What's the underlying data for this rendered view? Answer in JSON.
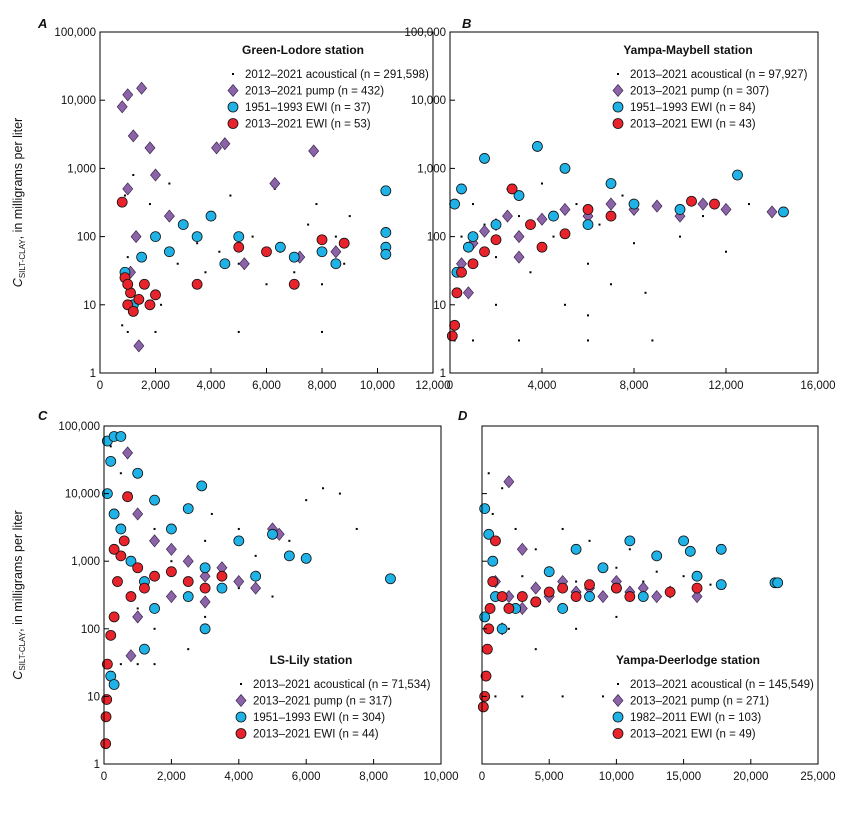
{
  "chart_data": [
    {
      "type": "scatter",
      "panel": "A",
      "title": "Green-Lodore station",
      "legend": "upper right",
      "log_y": true,
      "ylabel": {
        "symbol": "C",
        "subscript": "SILT-CLAY",
        "text": ", in milligrams per liter"
      },
      "xlim": [
        0,
        12000
      ],
      "xticks": [
        0,
        {
          "value": 2000,
          "label": "2,000"
        },
        {
          "value": 4000,
          "label": "4,000"
        },
        {
          "value": 6000,
          "label": "6,000"
        },
        {
          "value": 8000,
          "label": "8,000"
        },
        {
          "value": 10000,
          "label": "10,000"
        },
        {
          "value": 12000,
          "label": "12,000"
        }
      ],
      "ylim": [
        1,
        100000
      ],
      "yticks": [
        1,
        10,
        100,
        {
          "value": 1000,
          "label": "1,000"
        },
        {
          "value": 10000,
          "label": "10,000"
        },
        {
          "value": 100000,
          "label": "100,000"
        }
      ],
      "series": [
        {
          "name": "2012–2021 acoustical (n = 291,598)",
          "color": "#000000",
          "marker": "dot",
          "x": [
            800,
            900,
            1000,
            1200,
            1500,
            1800,
            2000,
            2200,
            2500,
            2800,
            3000,
            3500,
            3800,
            4000,
            4300,
            4700,
            5000,
            5500,
            6000,
            6300,
            6500,
            7000,
            7500,
            7800,
            8000,
            8500,
            8800,
            9000,
            2000,
            5000,
            8000,
            1000
          ],
          "values": [
            5,
            400,
            50,
            800,
            20,
            300,
            100,
            10,
            600,
            40,
            150,
            80,
            30,
            200,
            60,
            400,
            40,
            100,
            20,
            500,
            60,
            30,
            150,
            300,
            20,
            100,
            40,
            200,
            4,
            4,
            4,
            4
          ]
        },
        {
          "name": "2013–2021 pump (n = 432)",
          "color": "#8b64a8",
          "marker": "diamond",
          "x": [
            800,
            1000,
            1200,
            1500,
            1000,
            1300,
            1800,
            2000,
            1100,
            2500,
            4200,
            4500,
            6300,
            7700,
            7200,
            8500,
            5200,
            1400
          ],
          "values": [
            8000,
            12000,
            3000,
            15000,
            500,
            100,
            2000,
            800,
            30,
            200,
            2000,
            2300,
            600,
            1800,
            50,
            60,
            40,
            2.5
          ]
        },
        {
          "name": "1951–1993 EWI (n = 37)",
          "color": "#1eb2e6",
          "marker": "circle",
          "x": [
            900,
            1200,
            1500,
            2000,
            2500,
            3000,
            3500,
            4000,
            4500,
            5000,
            6500,
            7000,
            8000,
            8500,
            10300,
            10300,
            10300,
            10300
          ],
          "values": [
            30,
            10,
            50,
            100,
            60,
            150,
            100,
            200,
            40,
            100,
            70,
            50,
            60,
            40,
            470,
            115,
            70,
            55
          ]
        },
        {
          "name": "2013–2021 EWI (n = 53)",
          "color": "#e8232b",
          "marker": "circle",
          "x": [
            800,
            900,
            1000,
            1100,
            1200,
            1400,
            1600,
            1800,
            2000,
            1000,
            3500,
            5000,
            6000,
            7000,
            8000,
            8800
          ],
          "values": [
            320,
            25,
            10,
            15,
            8,
            12,
            20,
            10,
            14,
            20,
            20,
            70,
            60,
            20,
            90,
            80
          ]
        }
      ]
    },
    {
      "type": "scatter",
      "panel": "B",
      "title": "Yampa-Maybell station",
      "legend": "upper right",
      "log_y": true,
      "xlim": [
        0,
        16000
      ],
      "xticks": [
        0,
        {
          "value": 4000,
          "label": "4,000"
        },
        {
          "value": 8000,
          "label": "8,000"
        },
        {
          "value": 12000,
          "label": "12,000"
        },
        {
          "value": 16000,
          "label": "16,000"
        }
      ],
      "ylim": [
        1,
        100000
      ],
      "yticks": [
        1,
        10,
        100,
        {
          "value": 1000,
          "label": "1,000"
        },
        {
          "value": 10000,
          "label": "10,000"
        },
        {
          "value": 100000,
          "label": "100,000"
        }
      ],
      "series": [
        {
          "name": "2013–2021 acoustical (n = 97,927)",
          "color": "#000000",
          "marker": "dot",
          "x": [
            200,
            1000,
            3000,
            6000,
            8800,
            500,
            1000,
            1500,
            2000,
            2500,
            3000,
            3500,
            4000,
            4500,
            5000,
            5500,
            6000,
            6500,
            7000,
            7500,
            8000,
            8500,
            9000,
            10000,
            11000,
            12000,
            13000,
            14000,
            2000,
            6000
          ],
          "values": [
            3,
            3,
            3,
            3,
            3,
            100,
            300,
            150,
            50,
            500,
            200,
            30,
            600,
            100,
            10,
            300,
            40,
            150,
            20,
            400,
            80,
            15,
            250,
            100,
            200,
            60,
            300,
            240,
            10,
            7
          ]
        },
        {
          "name": "2013–2021 pump (n = 307)",
          "color": "#8b64a8",
          "marker": "diamond",
          "x": [
            500,
            1000,
            1500,
            2000,
            2500,
            3000,
            4000,
            5000,
            6000,
            7000,
            8000,
            9000,
            10000,
            11000,
            12000,
            14000,
            800,
            3000
          ],
          "values": [
            40,
            80,
            120,
            150,
            200,
            100,
            180,
            250,
            200,
            300,
            250,
            280,
            200,
            300,
            250,
            230,
            15,
            50
          ]
        },
        {
          "name": "1951–1993 EWI (n = 84)",
          "color": "#1eb2e6",
          "marker": "circle",
          "x": [
            200,
            500,
            800,
            1500,
            2000,
            3000,
            3800,
            4500,
            5000,
            6000,
            7000,
            8000,
            10000,
            12500,
            14500,
            300,
            1000
          ],
          "values": [
            300,
            500,
            70,
            1400,
            150,
            400,
            2100,
            200,
            1000,
            150,
            600,
            300,
            250,
            800,
            230,
            30,
            100
          ]
        },
        {
          "name": "2013–2021 EWI (n = 43)",
          "color": "#e8232b",
          "marker": "circle",
          "x": [
            100,
            200,
            300,
            500,
            1000,
            1500,
            2000,
            2700,
            3500,
            4000,
            5000,
            6000,
            7000,
            10500,
            11500
          ],
          "values": [
            3.5,
            5,
            15,
            30,
            40,
            60,
            90,
            500,
            150,
            70,
            110,
            250,
            200,
            330,
            300
          ]
        }
      ]
    },
    {
      "type": "scatter",
      "panel": "C",
      "title": "LS-Lily station",
      "legend": "lower right",
      "log_y": true,
      "ylabel": {
        "symbol": "C",
        "subscript": "SILT-CLAY",
        "text": ", in milligrams per liter"
      },
      "xlim": [
        0,
        10000
      ],
      "xticks": [
        0,
        {
          "value": 2000,
          "label": "2,000"
        },
        {
          "value": 4000,
          "label": "4,000"
        },
        {
          "value": 6000,
          "label": "6,000"
        },
        {
          "value": 8000,
          "label": "8,000"
        },
        {
          "value": 10000,
          "label": "10,000"
        }
      ],
      "ylim": [
        1,
        100000
      ],
      "yticks": [
        1,
        10,
        100,
        {
          "value": 1000,
          "label": "1,000"
        },
        {
          "value": 10000,
          "label": "10,000"
        },
        {
          "value": 100000,
          "label": "100,000"
        }
      ],
      "series": [
        {
          "name": "2013–2021 acoustical (n = 71,534)",
          "color": "#000000",
          "marker": "dot",
          "x": [
            500,
            1000,
            1500,
            200,
            500,
            800,
            1000,
            1500,
            2000,
            2500,
            3000,
            3500,
            4000,
            4500,
            5000,
            5500,
            6000,
            7000,
            7500,
            2000,
            3000,
            4000,
            5000,
            1500,
            2500,
            1000,
            6500,
            3200
          ],
          "values": [
            30,
            30,
            30,
            50000,
            20000,
            10000,
            5000,
            3000,
            1000,
            500,
            2000,
            800,
            3000,
            1200,
            3500,
            2000,
            8000,
            10000,
            3000,
            300,
            150,
            400,
            300,
            100,
            50,
            200,
            12000,
            5000
          ]
        },
        {
          "name": "2013–2021 pump (n = 317)",
          "color": "#8b64a8",
          "marker": "diamond",
          "x": [
            700,
            1000,
            1500,
            2000,
            2500,
            3000,
            3500,
            4000,
            4500,
            5000,
            5200,
            2000,
            3000,
            1000,
            800
          ],
          "values": [
            40000,
            5000,
            2000,
            1500,
            1000,
            600,
            800,
            500,
            400,
            3000,
            2500,
            300,
            250,
            150,
            40
          ]
        },
        {
          "name": "1951–1993 EWI (n = 304)",
          "color": "#1eb2e6",
          "marker": "circle",
          "x": [
            100,
            300,
            500,
            200,
            100,
            300,
            500,
            800,
            1000,
            1200,
            1500,
            2000,
            2500,
            2900,
            3000,
            3500,
            4000,
            4500,
            5000,
            5500,
            6000,
            2500,
            3000,
            1500,
            8500,
            200,
            300,
            1200
          ],
          "values": [
            60000,
            70000,
            70000,
            30000,
            10000,
            5000,
            3000,
            1000,
            20000,
            500,
            8000,
            3000,
            6000,
            13000,
            800,
            400,
            2000,
            600,
            2500,
            1200,
            1100,
            300,
            100,
            200,
            550,
            20,
            15,
            50
          ]
        },
        {
          "name": "2013–2021 EWI (n = 44)",
          "color": "#e8232b",
          "marker": "circle",
          "x": [
            50,
            60,
            80,
            100,
            200,
            300,
            400,
            500,
            600,
            700,
            800,
            1000,
            1200,
            1500,
            2000,
            2500,
            3000,
            3500,
            300
          ],
          "values": [
            2,
            5,
            9,
            30,
            80,
            150,
            500,
            1200,
            2000,
            9000,
            300,
            800,
            400,
            600,
            700,
            500,
            400,
            600,
            1500
          ]
        }
      ]
    },
    {
      "type": "scatter",
      "panel": "D",
      "title": "Yampa-Deerlodge station",
      "legend": "lower right",
      "log_y": true,
      "xlim": [
        0,
        25000
      ],
      "xticks": [
        0,
        {
          "value": 5000,
          "label": "5,000"
        },
        {
          "value": 10000,
          "label": "10,000"
        },
        {
          "value": 15000,
          "label": "15,000"
        },
        {
          "value": 20000,
          "label": "20,000"
        },
        {
          "value": 25000,
          "label": "25,000"
        }
      ],
      "ylim": [
        1,
        100000
      ],
      "series": [
        {
          "name": "2013–2021 acoustical (n = 145,549)",
          "color": "#000000",
          "marker": "dot",
          "x": [
            300,
            1000,
            3000,
            6000,
            9000,
            500,
            800,
            1000,
            1500,
            2000,
            1500,
            2500,
            3000,
            4000,
            5000,
            6000,
            7000,
            8000,
            9000,
            10000,
            11000,
            12000,
            13000,
            14000,
            15000,
            16000,
            17000,
            18000,
            4000,
            7000,
            10000
          ],
          "values": [
            10,
            10,
            10,
            10,
            10,
            20000,
            5000,
            1000,
            300,
            100,
            12000,
            3000,
            600,
            1500,
            800,
            3000,
            500,
            2000,
            300,
            800,
            1500,
            500,
            700,
            400,
            600,
            300,
            450,
            400,
            50,
            100,
            150
          ]
        },
        {
          "name": "2013–2021 pump (n = 271)",
          "color": "#8b64a8",
          "marker": "diamond",
          "x": [
            2000,
            1000,
            2000,
            3000,
            4000,
            5000,
            6000,
            7000,
            8000,
            9000,
            10000,
            11000,
            12000,
            13000,
            14000,
            16000,
            1500,
            3000
          ],
          "values": [
            15000,
            500,
            300,
            200,
            400,
            300,
            500,
            350,
            400,
            300,
            500,
            350,
            400,
            300,
            350,
            300,
            100,
            1500
          ]
        },
        {
          "name": "1982–2011 EWI (n = 103)",
          "color": "#1eb2e6",
          "marker": "circle",
          "x": [
            200,
            500,
            800,
            1000,
            1500,
            2500,
            4000,
            5000,
            6000,
            7000,
            8000,
            9000,
            10000,
            11000,
            12000,
            13000,
            15000,
            15500,
            16000,
            17800,
            17800,
            21800,
            22000,
            200
          ],
          "values": [
            6000,
            2500,
            1000,
            300,
            100,
            200,
            250,
            700,
            200,
            1500,
            300,
            800,
            400,
            2000,
            300,
            1200,
            2000,
            1400,
            600,
            1500,
            450,
            480,
            480,
            150
          ]
        },
        {
          "name": "2013–2021 EWI (n = 49)",
          "color": "#e8232b",
          "marker": "circle",
          "x": [
            100,
            200,
            300,
            400,
            500,
            600,
            800,
            1000,
            1500,
            2000,
            3000,
            4000,
            5000,
            6000,
            7000,
            8000,
            10000,
            11000,
            14000,
            16000
          ],
          "values": [
            7,
            10,
            20,
            50,
            100,
            200,
            500,
            2000,
            300,
            200,
            300,
            250,
            350,
            400,
            300,
            450,
            400,
            300,
            350,
            400
          ]
        }
      ]
    }
  ]
}
